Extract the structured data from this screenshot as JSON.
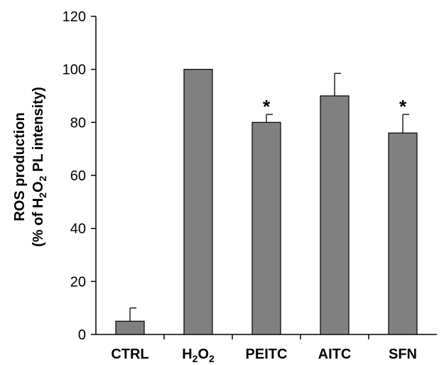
{
  "chart_data": {
    "type": "bar",
    "categories": [
      {
        "base": "CTRL"
      },
      {
        "base": "H",
        "sub1": "2",
        "mid": "O",
        "sub2": "2"
      },
      {
        "base": "PEITC"
      },
      {
        "base": "AITC"
      },
      {
        "base": "SFN"
      }
    ],
    "values": [
      5,
      100,
      80,
      90,
      76
    ],
    "error_upper": [
      10,
      100,
      83,
      98.5,
      83
    ],
    "significance": [
      "",
      "",
      "*",
      "",
      "*"
    ],
    "ylabel": {
      "line1": "ROS production",
      "line2_parts": [
        "(% of H",
        "2",
        "O",
        "2",
        " PL intensity)"
      ]
    },
    "ylim": [
      0,
      120
    ],
    "yticks": [
      "0",
      "20",
      "40",
      "60",
      "80",
      "100",
      "120"
    ],
    "bar_color": "#808080",
    "grid": false,
    "legend": "none"
  }
}
